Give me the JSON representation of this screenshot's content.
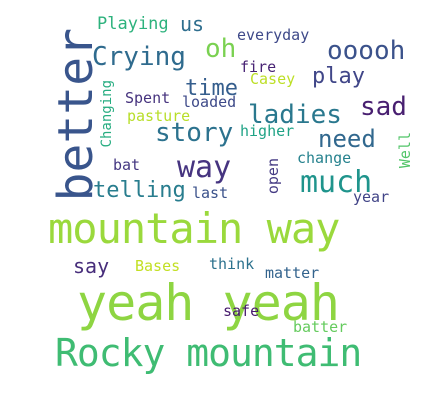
{
  "words": [
    {
      "key": "yeah_yeah",
      "text": "yeah yeah",
      "color": "#8ed542"
    },
    {
      "key": "mountain_way",
      "text": "mountain way",
      "color": "#9ad93c"
    },
    {
      "key": "rocky_mountain",
      "text": "Rocky mountain",
      "color": "#3fbc73"
    },
    {
      "key": "better",
      "text": "better",
      "color": "#39558c"
    },
    {
      "key": "much",
      "text": "much",
      "color": "#1f948c"
    },
    {
      "key": "crying",
      "text": "Crying",
      "color": "#2f6b8e"
    },
    {
      "key": "ladies",
      "text": "ladies",
      "color": "#2a788e"
    },
    {
      "key": "way",
      "text": "way",
      "color": "#463480"
    },
    {
      "key": "story",
      "text": "story",
      "color": "#2c728e"
    },
    {
      "key": "need",
      "text": "need",
      "color": "#31688e"
    },
    {
      "key": "sad",
      "text": "sad",
      "color": "#481f70"
    },
    {
      "key": "ooooh",
      "text": "ooooh",
      "color": "#3b528b"
    },
    {
      "key": "oh",
      "text": "oh",
      "color": "#7ad151"
    },
    {
      "key": "telling",
      "text": "telling",
      "color": "#287d8e"
    },
    {
      "key": "play",
      "text": "play",
      "color": "#404688"
    },
    {
      "key": "time",
      "text": "time",
      "color": "#355e8d"
    },
    {
      "key": "say",
      "text": "say",
      "color": "#472d7b"
    },
    {
      "key": "playing",
      "text": "Playing",
      "color": "#2db27d"
    },
    {
      "key": "us",
      "text": "us",
      "color": "#2e6e8e"
    },
    {
      "key": "everyday",
      "text": "everyday",
      "color": "#3e4989"
    },
    {
      "key": "fire",
      "text": "fire",
      "color": "#482374"
    },
    {
      "key": "casey",
      "text": "Casey",
      "color": "#bddf26"
    },
    {
      "key": "spent",
      "text": "Spent",
      "color": "#46337e"
    },
    {
      "key": "loaded",
      "text": "loaded",
      "color": "#3e4a89"
    },
    {
      "key": "changing",
      "text": "Changing",
      "color": "#27ad81"
    },
    {
      "key": "pasture",
      "text": "pasture",
      "color": "#b8de29"
    },
    {
      "key": "higher",
      "text": "higher",
      "color": "#20a386"
    },
    {
      "key": "change",
      "text": "change",
      "color": "#26828e"
    },
    {
      "key": "well",
      "text": "Well",
      "color": "#52c569"
    },
    {
      "key": "bat",
      "text": "bat",
      "color": "#453882"
    },
    {
      "key": "last",
      "text": "last",
      "color": "#3b528b"
    },
    {
      "key": "open",
      "text": "open",
      "color": "#443a83"
    },
    {
      "key": "year",
      "text": "year",
      "color": "#414487"
    },
    {
      "key": "bases",
      "text": "Bases",
      "color": "#c2df23"
    },
    {
      "key": "think",
      "text": "think",
      "color": "#2c728e"
    },
    {
      "key": "matter",
      "text": "matter",
      "color": "#33638d"
    },
    {
      "key": "safe",
      "text": "safe",
      "color": "#481c6e"
    },
    {
      "key": "batter",
      "text": "batter",
      "color": "#65cb5e"
    }
  ]
}
